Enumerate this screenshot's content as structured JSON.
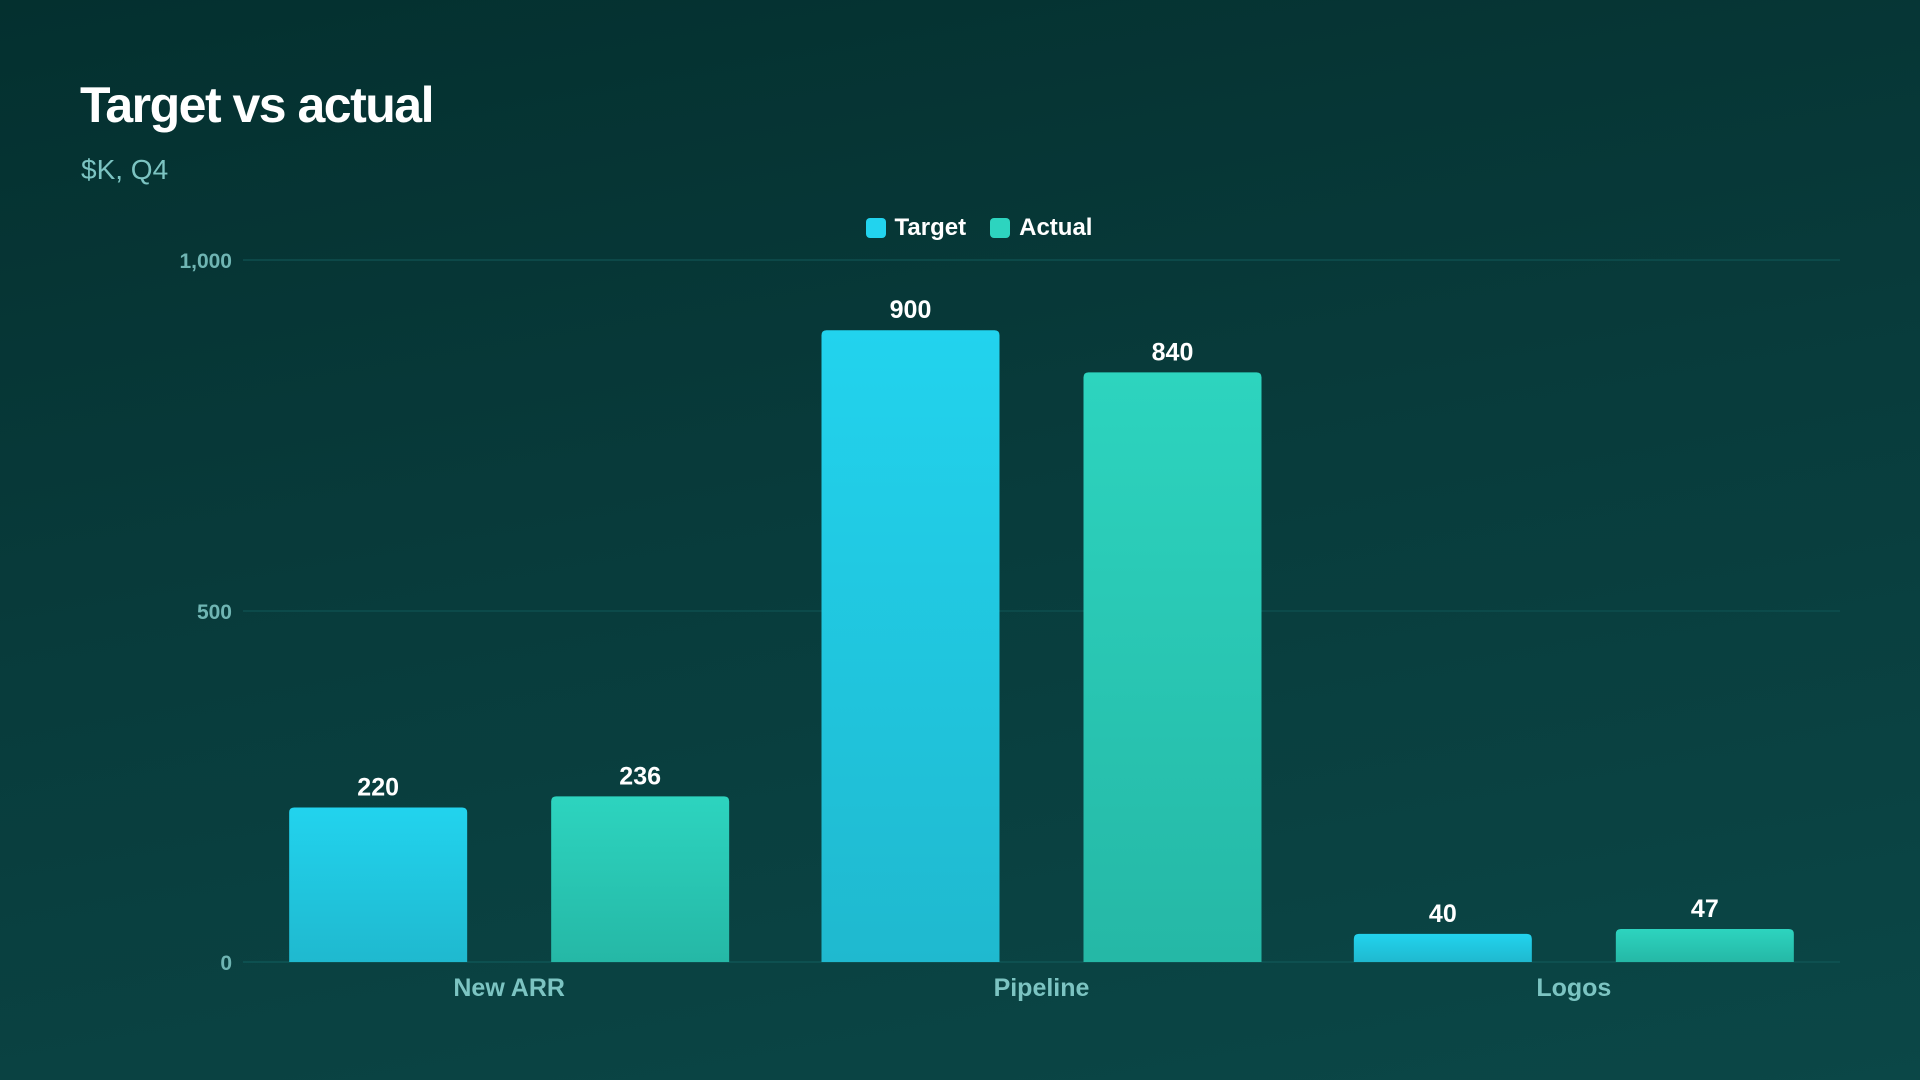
{
  "header": {
    "title": "Target vs actual",
    "subtitle": "$K, Q4"
  },
  "chart_data": {
    "type": "bar",
    "title": "Target vs actual",
    "subtitle": "$K, Q4",
    "categories": [
      "New ARR",
      "Pipeline",
      "Logos"
    ],
    "series": [
      {
        "name": "Target",
        "values": [
          220,
          900,
          40
        ],
        "color": "#22d3ee"
      },
      {
        "name": "Actual",
        "values": [
          236,
          840,
          47
        ],
        "color": "#2dd4bf"
      }
    ],
    "ylim": [
      0,
      1000
    ],
    "yticks": [
      0,
      500,
      1000
    ],
    "ytick_labels": [
      "0",
      "500",
      "1,000"
    ],
    "grid": true,
    "legend_position": "top-center",
    "data_labels": true
  }
}
